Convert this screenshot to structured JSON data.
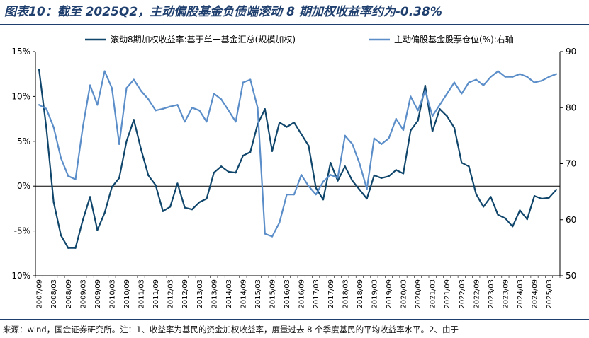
{
  "title": "图表10：截至 2025Q2，主动偏股基金负债端滚动 8 期加权收益率约为-0.38%",
  "footer": "来源：wind，国金证券研究所。注：1、收益率为基民的资金加权收益率，度量过去 8 个季度基民的平均收益率水平。2、由于",
  "colors": {
    "series1": "#10466b",
    "series2": "#5b8ec9"
  },
  "chart_data": {
    "type": "line",
    "legend_position": "top",
    "grid": false,
    "x": [
      "2007/09",
      "2007/12",
      "2008/03",
      "2008/06",
      "2008/09",
      "2008/12",
      "2009/03",
      "2009/06",
      "2009/09",
      "2009/12",
      "2010/03",
      "2010/06",
      "2010/09",
      "2010/12",
      "2011/03",
      "2011/06",
      "2011/09",
      "2011/12",
      "2012/03",
      "2012/06",
      "2012/09",
      "2012/12",
      "2013/03",
      "2013/06",
      "2013/09",
      "2013/12",
      "2014/03",
      "2014/06",
      "2014/09",
      "2014/12",
      "2015/03",
      "2015/06",
      "2015/09",
      "2015/12",
      "2016/03",
      "2016/06",
      "2016/09",
      "2016/12",
      "2017/03",
      "2017/06",
      "2017/09",
      "2017/12",
      "2018/03",
      "2018/06",
      "2018/09",
      "2018/12",
      "2019/03",
      "2019/06",
      "2019/09",
      "2019/12",
      "2020/03",
      "2020/06",
      "2020/09",
      "2020/12",
      "2021/03",
      "2021/06",
      "2021/09",
      "2021/12",
      "2022/03",
      "2022/06",
      "2022/09",
      "2022/12",
      "2023/03",
      "2023/06",
      "2023/09",
      "2023/12",
      "2024/03",
      "2024/06",
      "2024/09",
      "2024/12",
      "2025/03",
      "2025/06"
    ],
    "x_tick_labels": [
      "2007/09",
      "2008/03",
      "2008/09",
      "2009/03",
      "2009/09",
      "2010/03",
      "2010/09",
      "2011/03",
      "2011/09",
      "2012/03",
      "2012/09",
      "2013/03",
      "2013/09",
      "2014/03",
      "2014/09",
      "2015/03",
      "2015/09",
      "2016/03",
      "2016/09",
      "2017/03",
      "2017/09",
      "2018/03",
      "2018/09",
      "2019/03",
      "2019/09",
      "2020/03",
      "2020/09",
      "2021/03",
      "2021/09",
      "2022/03",
      "2022/09",
      "2023/03",
      "2023/09",
      "2024/03",
      "2024/09",
      "2025/03"
    ],
    "y_left": {
      "range": [
        -10,
        15
      ],
      "ticks": [
        -10,
        -5,
        0,
        5,
        10,
        15
      ],
      "tick_labels": [
        "-10%",
        "-5%",
        "0%",
        "5%",
        "10%",
        "15%"
      ]
    },
    "y_right": {
      "range": [
        50,
        90
      ],
      "ticks": [
        50,
        60,
        70,
        80,
        90
      ],
      "tick_labels": [
        "50",
        "60",
        "70",
        "80",
        "90"
      ]
    },
    "series": [
      {
        "name": "滚动8期加权收益率:基于单一基金汇总(规模加权)",
        "axis": "left",
        "values": [
          13.0,
          6.5,
          -1.8,
          -5.5,
          -6.9,
          -6.9,
          -3.8,
          -1.2,
          -4.9,
          -3.0,
          -0.1,
          0.9,
          5.0,
          7.4,
          4.1,
          1.2,
          0.1,
          -2.8,
          -2.3,
          0.3,
          -2.4,
          -2.6,
          -1.8,
          -1.4,
          1.5,
          2.2,
          1.6,
          1.5,
          3.4,
          3.8,
          6.9,
          8.6,
          3.9,
          7.1,
          6.6,
          7.1,
          5.8,
          4.5,
          -0.2,
          -1.5,
          2.6,
          0.6,
          2.2,
          0.6,
          -0.4,
          -1.4,
          1.2,
          0.9,
          1.1,
          1.8,
          1.4,
          6.2,
          7.3,
          11.2,
          6.1,
          8.6,
          7.8,
          6.5,
          2.6,
          2.2,
          -0.9,
          -2.3,
          -1.2,
          -3.2,
          -3.6,
          -4.5,
          -2.7,
          -3.7,
          -1.1,
          -1.4,
          -1.3,
          -0.4
        ]
      },
      {
        "name": "主动偏股基金股票仓位(%):右轴",
        "axis": "right",
        "values": [
          80.5,
          79.8,
          76.5,
          71.0,
          67.8,
          67.2,
          76.5,
          84.0,
          80.5,
          86.5,
          83.5,
          73.5,
          83.5,
          85.0,
          83.0,
          81.5,
          79.5,
          79.8,
          80.2,
          80.5,
          77.5,
          80.0,
          79.5,
          77.5,
          82.5,
          81.5,
          79.5,
          77.5,
          84.5,
          85.0,
          80.0,
          57.5,
          57.0,
          59.5,
          64.5,
          64.5,
          68.0,
          66.0,
          64.5,
          66.8,
          68.0,
          67.5,
          75.0,
          73.5,
          70.0,
          65.5,
          74.5,
          73.5,
          74.5,
          78.0,
          76.0,
          82.0,
          79.5,
          83.0,
          78.5,
          80.5,
          82.5,
          84.5,
          82.5,
          84.5,
          85.0,
          84.0,
          85.5,
          86.5,
          85.5,
          85.5,
          86.0,
          85.5,
          84.5,
          84.8,
          85.5,
          86.0
        ]
      }
    ]
  }
}
